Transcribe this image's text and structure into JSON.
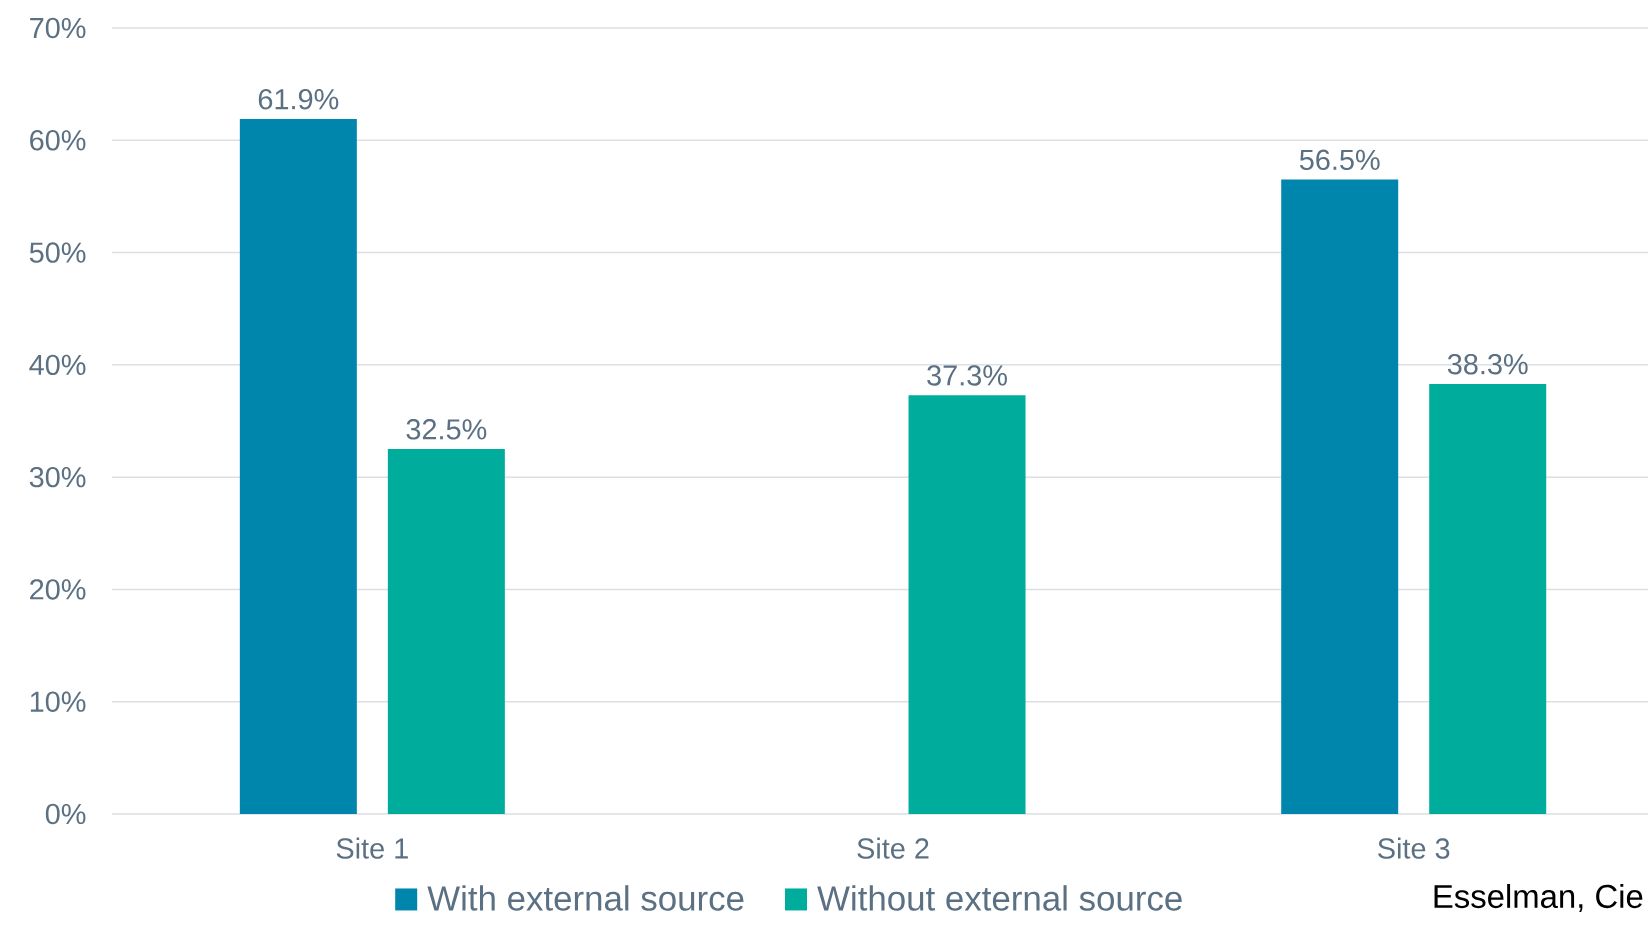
{
  "chart_data": {
    "type": "bar",
    "categories": [
      "Site 1",
      "Site 2",
      "Site 3"
    ],
    "series": [
      {
        "name": "With external source",
        "color": "#0086ad",
        "values": [
          61.9,
          null,
          56.5
        ],
        "value_labels": [
          "61.9%",
          null,
          "56.5%"
        ]
      },
      {
        "name": "Without external source",
        "color": "#00ad9c",
        "values": [
          32.5,
          37.3,
          38.3
        ],
        "value_labels": [
          "32.5%",
          "37.3%",
          "38.3%"
        ]
      }
    ],
    "ylim": [
      0,
      70
    ],
    "yticks": [
      {
        "value": 0,
        "label": "0%"
      },
      {
        "value": 10,
        "label": "10%"
      },
      {
        "value": 20,
        "label": "20%"
      },
      {
        "value": 30,
        "label": "30%"
      },
      {
        "value": 40,
        "label": "40%"
      },
      {
        "value": 50,
        "label": "50%"
      },
      {
        "value": 60,
        "label": "60%"
      },
      {
        "value": 70,
        "label": "70%"
      }
    ],
    "grid": "y",
    "legend": "bottom",
    "annotations": [
      "Esselman, Cie"
    ]
  }
}
